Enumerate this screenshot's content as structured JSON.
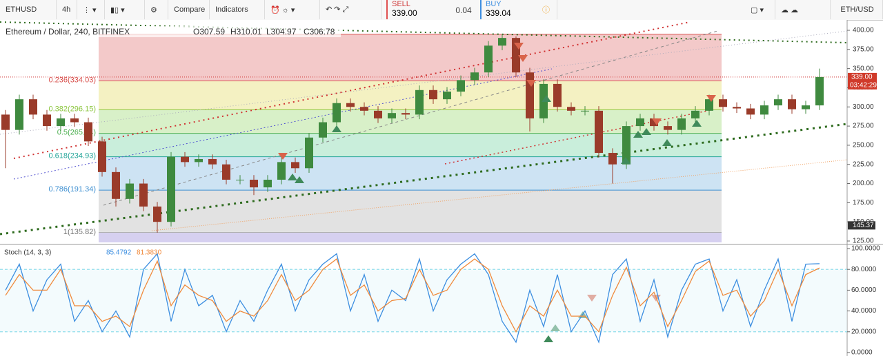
{
  "toolbar": {
    "symbol": "ETHUSD",
    "interval": "4h",
    "compare": "Compare",
    "indicators": "Indicators",
    "sell_label": "SELL",
    "sell_price": "339.00",
    "spread": "0.04",
    "buy_label": "BUY",
    "buy_price": "339.04",
    "pair": "ETH/USD"
  },
  "chart_data": [
    {
      "type": "candlestick",
      "title": "Ethereum / Dollar, 240, BITFINEX",
      "legend_ohlc": [
        "O307.59",
        "H310.01",
        "L304.97",
        "C306.78"
      ],
      "up_color": "#3f8a3f",
      "down_color": "#9a3b2a",
      "open": [
        290,
        270,
        310,
        290,
        275,
        285,
        280,
        255,
        215,
        180,
        200,
        170,
        150,
        235,
        228,
        232,
        225,
        205,
        205,
        195,
        205,
        228,
        220,
        260,
        280,
        305,
        300,
        295,
        285,
        292,
        290,
        322,
        310,
        320,
        335,
        345,
        380,
        390,
        345,
        285,
        330,
        300,
        295,
        295,
        240,
        225,
        275,
        285,
        275,
        270,
        285,
        295,
        310,
        300,
        298,
        290,
        302,
        310,
        297,
        302
      ],
      "high": [
        296,
        316,
        316,
        296,
        291,
        291,
        286,
        261,
        221,
        206,
        206,
        176,
        241,
        241,
        238,
        238,
        231,
        211,
        211,
        211,
        234,
        234,
        266,
        286,
        311,
        311,
        306,
        301,
        298,
        298,
        328,
        328,
        326,
        341,
        351,
        386,
        394,
        392,
        351,
        336,
        336,
        306,
        301,
        301,
        246,
        281,
        291,
        291,
        281,
        291,
        301,
        316,
        316,
        306,
        304,
        308,
        316,
        316,
        308,
        350
      ],
      "low": [
        220,
        264,
        284,
        269,
        269,
        274,
        249,
        209,
        170,
        174,
        164,
        136,
        144,
        222,
        222,
        219,
        199,
        199,
        185,
        189,
        199,
        214,
        214,
        254,
        274,
        294,
        289,
        279,
        279,
        284,
        284,
        304,
        304,
        314,
        329,
        339,
        374,
        339,
        268,
        279,
        294,
        289,
        289,
        234,
        200,
        219,
        269,
        269,
        264,
        264,
        279,
        289,
        294,
        292,
        284,
        284,
        296,
        291,
        291,
        296
      ],
      "close": [
        270,
        310,
        290,
        275,
        285,
        280,
        255,
        215,
        180,
        200,
        170,
        150,
        235,
        228,
        232,
        225,
        205,
        205,
        195,
        205,
        228,
        220,
        260,
        280,
        305,
        300,
        295,
        285,
        292,
        290,
        322,
        310,
        320,
        335,
        345,
        380,
        390,
        345,
        285,
        330,
        300,
        295,
        295,
        240,
        225,
        275,
        285,
        275,
        270,
        285,
        295,
        310,
        300,
        298,
        290,
        302,
        310,
        297,
        302,
        339
      ],
      "ylim": [
        125,
        400
      ],
      "yticks": [
        {
          "value": 125,
          "label": "125.00"
        },
        {
          "value": 150,
          "label": "150.00"
        },
        {
          "value": 175,
          "label": "175.00"
        },
        {
          "value": 200,
          "label": "200.00"
        },
        {
          "value": 225,
          "label": "225.00"
        },
        {
          "value": 250,
          "label": "250.00"
        },
        {
          "value": 275,
          "label": "275.00"
        },
        {
          "value": 300,
          "label": "300.00"
        },
        {
          "value": 325,
          "label": "325.00"
        },
        {
          "value": 350,
          "label": "350.00"
        },
        {
          "value": 375,
          "label": "375.00"
        },
        {
          "value": 400,
          "label": "400.00"
        }
      ],
      "fib_levels": [
        {
          "value": 395
        },
        {
          "value": 334.03,
          "label": "0.236(334.03)",
          "color": "#d9534f"
        },
        {
          "value": 296.15,
          "label": "0.382(296.15)",
          "color": "#8cc63f"
        },
        {
          "value": 265.54,
          "label": "0.5(265.54)",
          "color": "#4caf50"
        },
        {
          "value": 234.93,
          "label": "0.618(234.93)",
          "color": "#26a69a"
        },
        {
          "value": 191.34,
          "label": "0.786(191.34)",
          "color": "#3d8fd1"
        },
        {
          "value": 135.82,
          "label": "1(135.82)",
          "color": "#777777"
        }
      ],
      "fib_fills": [
        "#f3c9c9",
        "#f4f1c2",
        "#d8f0c8",
        "#c9eedb",
        "#cde3f3",
        "#e2e2e2"
      ],
      "last_price": {
        "value": 339,
        "label": "339.00"
      },
      "countdown": "03:42:29",
      "crosshair_price": {
        "value": 145.37,
        "label": "145.37"
      }
    },
    {
      "type": "line",
      "title": "Stoch (14, 3, 3)",
      "legend_values": [
        "85.4792",
        "81.3830"
      ],
      "series": [
        {
          "color": "#3c8ee0",
          "values": [
            60,
            85,
            40,
            70,
            85,
            30,
            50,
            20,
            40,
            15,
            80,
            95,
            30,
            80,
            45,
            55,
            20,
            50,
            30,
            60,
            85,
            40,
            70,
            85,
            95,
            40,
            75,
            30,
            60,
            50,
            90,
            40,
            70,
            85,
            95,
            75,
            30,
            10,
            60,
            25,
            75,
            20,
            40,
            10,
            75,
            90,
            30,
            70,
            15,
            60,
            85,
            90,
            40,
            70,
            25,
            60,
            90,
            30,
            85,
            85.4792
          ]
        },
        {
          "color": "#f08a3c",
          "values": [
            55,
            75,
            60,
            60,
            80,
            45,
            45,
            30,
            35,
            25,
            60,
            88,
            45,
            65,
            55,
            50,
            30,
            40,
            35,
            50,
            75,
            50,
            60,
            80,
            90,
            55,
            65,
            40,
            50,
            52,
            80,
            55,
            60,
            80,
            90,
            80,
            45,
            20,
            45,
            35,
            60,
            35,
            35,
            20,
            55,
            82,
            45,
            58,
            25,
            50,
            78,
            88,
            55,
            60,
            35,
            50,
            80,
            45,
            75,
            81.383
          ]
        }
      ],
      "bands": [
        20,
        80
      ],
      "ylim": [
        0,
        100
      ],
      "yticks": [
        {
          "value": 0,
          "label": "0.0000"
        },
        {
          "value": 20,
          "label": "20.0000"
        },
        {
          "value": 40,
          "label": "40.0000"
        },
        {
          "value": 60,
          "label": "60.0000"
        },
        {
          "value": 80,
          "label": "80.0000"
        },
        {
          "value": 100,
          "label": "100.0000"
        }
      ]
    }
  ]
}
